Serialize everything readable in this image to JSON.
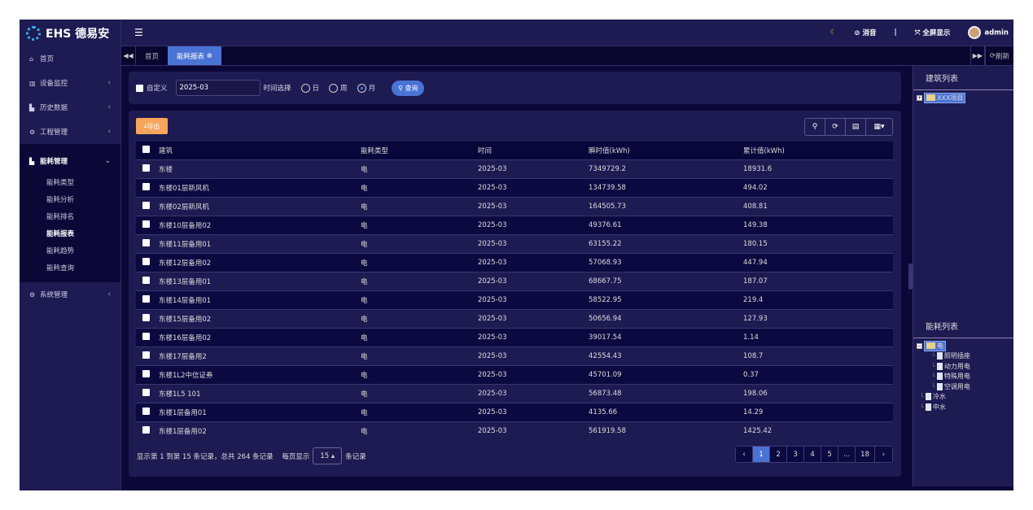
{
  "brand": {
    "name": "EHS 德易安"
  },
  "sidebar": {
    "items": [
      {
        "label": "首页",
        "icon": "home-icon"
      },
      {
        "label": "设备监控",
        "icon": "bank-icon"
      },
      {
        "label": "历史数据",
        "icon": "bar-chart-icon"
      },
      {
        "label": "工程管理",
        "icon": "cogs-icon"
      },
      {
        "label": "能耗管理",
        "icon": "bar-chart-icon",
        "expanded": true,
        "children": [
          "能耗类型",
          "能耗分析",
          "能耗排名",
          "能耗报表",
          "能耗趋势",
          "能耗查询"
        ],
        "active_child": "能耗报表"
      },
      {
        "label": "系统管理",
        "icon": "gear-icon"
      }
    ]
  },
  "header": {
    "mute": "消音",
    "separator": "|",
    "fullscreen": "全屏显示",
    "user": "admin"
  },
  "tabs": {
    "items": [
      "首页",
      "能耗报表"
    ],
    "active": "能耗报表",
    "refresh": "刷新"
  },
  "filter": {
    "custom_label": "自定义",
    "date_value": "2025-03",
    "time_label": "时间选择",
    "options": [
      "日",
      "周",
      "月"
    ],
    "selected": "月",
    "query": "查询"
  },
  "toolbar": {
    "export": "导出"
  },
  "table": {
    "columns": [
      "建筑",
      "能耗类型",
      "时间",
      "瞬时值(kWh)",
      "累计值(kWh)"
    ],
    "rows": [
      [
        "东楼",
        "电",
        "2025-03",
        "7349729.2",
        "18931.6"
      ],
      [
        "东楼01层新风机",
        "电",
        "2025-03",
        "134739.58",
        "494.02"
      ],
      [
        "东楼02层新风机",
        "电",
        "2025-03",
        "164505.73",
        "408.81"
      ],
      [
        "东楼10层备用02",
        "电",
        "2025-03",
        "49376.61",
        "149.38"
      ],
      [
        "东楼11层备用01",
        "电",
        "2025-03",
        "63155.22",
        "180.15"
      ],
      [
        "东楼12层备用02",
        "电",
        "2025-03",
        "57068.93",
        "447.94"
      ],
      [
        "东楼13层备用01",
        "电",
        "2025-03",
        "68667.75",
        "187.07"
      ],
      [
        "东楼14层备用01",
        "电",
        "2025-03",
        "58522.95",
        "219.4"
      ],
      [
        "东楼15层备用02",
        "电",
        "2025-03",
        "50656.94",
        "127.93"
      ],
      [
        "东楼16层备用02",
        "电",
        "2025-03",
        "39017.54",
        "1.14"
      ],
      [
        "东楼17层备用2",
        "电",
        "2025-03",
        "42554.43",
        "108.7"
      ],
      [
        "东楼1L2中信证券",
        "电",
        "2025-03",
        "45701.09",
        "0.37"
      ],
      [
        "东楼1L5 101",
        "电",
        "2025-03",
        "56873.48",
        "198.06"
      ],
      [
        "东楼1层备用01",
        "电",
        "2025-03",
        "4135.66",
        "14.29"
      ],
      [
        "东楼1层备用02",
        "电",
        "2025-03",
        "561919.58",
        "1425.42"
      ]
    ]
  },
  "pagination": {
    "summary": "显示第 1 到第 15 条记录，总共 264 条记录",
    "per_page_label": "每页显示",
    "per_page": "15",
    "per_page_suffix": "条记录",
    "pages": [
      "‹",
      "1",
      "2",
      "3",
      "4",
      "5",
      "...",
      "18",
      "›"
    ],
    "current": "1"
  },
  "right_panel": {
    "building_title": "建筑列表",
    "building_tree": [
      "XXX项目"
    ],
    "energy_title": "能耗列表",
    "energy_tree": {
      "root": "电",
      "children": [
        "照明插座",
        "动力用电",
        "特殊用电",
        "空调用电"
      ],
      "siblings": [
        "冷水",
        "中水"
      ]
    }
  },
  "colors": {
    "accent": "#4a73d6",
    "export": "#f5a65b",
    "sidebar": "#1e1a52",
    "background": "#0b0838"
  }
}
